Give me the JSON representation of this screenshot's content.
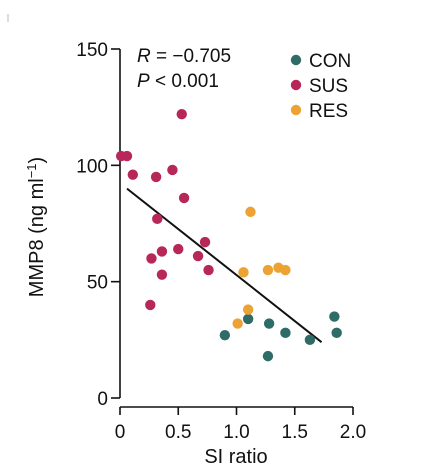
{
  "chart_data": {
    "type": "scatter",
    "xlabel": "SI ratio",
    "ylabel": {
      "main": "MMP8 (ng ml",
      "sup": "−1",
      "close": ")"
    },
    "xlim": [
      0,
      2.0
    ],
    "ylim": [
      0,
      150
    ],
    "x_ticks": [
      "0",
      "0.5",
      "1.0",
      "1.5",
      "2.0"
    ],
    "y_ticks": [
      "0",
      "50",
      "100",
      "150"
    ],
    "x_tick_values": [
      0,
      0.5,
      1.0,
      1.5,
      2.0
    ],
    "y_tick_values": [
      0,
      50,
      100,
      150
    ],
    "stats": {
      "r_symbol": "R",
      "r_value": " = −0.705",
      "p_symbol": "P",
      "p_value": " < 0.001"
    },
    "legend_position": "top-right",
    "series": [
      {
        "name": "CON",
        "color": "#2f6b67",
        "points": [
          [
            0.9,
            27
          ],
          [
            1.1,
            34
          ],
          [
            1.27,
            18
          ],
          [
            1.28,
            32
          ],
          [
            1.42,
            28
          ],
          [
            1.63,
            25
          ],
          [
            1.84,
            35
          ],
          [
            1.86,
            28
          ]
        ]
      },
      {
        "name": "SUS",
        "color": "#b7275a",
        "points": [
          [
            0.01,
            104
          ],
          [
            0.06,
            104
          ],
          [
            0.11,
            96
          ],
          [
            0.26,
            40
          ],
          [
            0.27,
            60
          ],
          [
            0.31,
            95
          ],
          [
            0.32,
            77
          ],
          [
            0.36,
            63
          ],
          [
            0.36,
            53
          ],
          [
            0.45,
            98
          ],
          [
            0.5,
            64
          ],
          [
            0.53,
            122
          ],
          [
            0.55,
            86
          ],
          [
            0.67,
            61
          ],
          [
            0.73,
            67
          ],
          [
            0.76,
            55
          ]
        ]
      },
      {
        "name": "RES",
        "color": "#eda334",
        "points": [
          [
            1.01,
            32
          ],
          [
            1.06,
            54
          ],
          [
            1.1,
            38
          ],
          [
            1.12,
            80
          ],
          [
            1.27,
            55
          ],
          [
            1.36,
            56
          ],
          [
            1.42,
            55
          ]
        ]
      }
    ],
    "regression": {
      "x": [
        0.06,
        1.73
      ],
      "y": [
        90,
        24
      ],
      "color": "#111111"
    }
  }
}
